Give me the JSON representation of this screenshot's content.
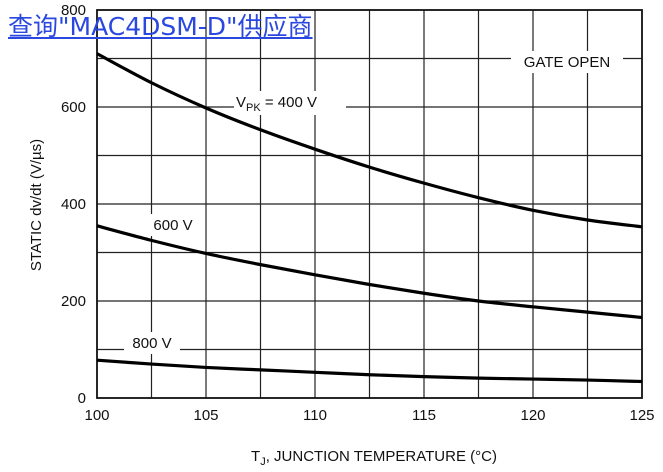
{
  "link_text": "查询\"MAC4DSM-D\"供应商",
  "chart_data": {
    "type": "line",
    "title": "",
    "xlabel_main": "T",
    "xlabel_sub": "J",
    "xlabel_rest": ", JUNCTION TEMPERATURE (°C)",
    "ylabel": "STATIC dv/dt (V/µs)",
    "xlim": [
      100,
      125
    ],
    "ylim": [
      0,
      800
    ],
    "x_ticks": [
      100,
      105,
      110,
      115,
      120,
      125
    ],
    "y_ticks": [
      0,
      200,
      400,
      600,
      800
    ],
    "grid": true,
    "annotations": {
      "gate_open": "GATE OPEN",
      "v400_main": "V",
      "v400_sub": "PK",
      "v400_rest": " = 400 V",
      "v600": "600 V",
      "v800": "800 V"
    },
    "series": [
      {
        "name": "VPK = 400 V",
        "x": [
          100,
          102.5,
          105,
          107.5,
          110,
          112.5,
          115,
          117.5,
          120,
          122.5,
          125
        ],
        "y": [
          710,
          650,
          598,
          553,
          513,
          476,
          443,
          413,
          387,
          367,
          353
        ]
      },
      {
        "name": "600 V",
        "x": [
          100,
          102.5,
          105,
          107.5,
          110,
          112.5,
          115,
          117.5,
          120,
          122.5,
          125
        ],
        "y": [
          355,
          325,
          298,
          275,
          254,
          234,
          216,
          200,
          188,
          177,
          166
        ]
      },
      {
        "name": "800 V",
        "x": [
          100,
          102.5,
          105,
          107.5,
          110,
          112.5,
          115,
          117.5,
          120,
          122.5,
          125
        ],
        "y": [
          78,
          70,
          63,
          58,
          53,
          48,
          44,
          41,
          39,
          37,
          34
        ]
      }
    ]
  }
}
